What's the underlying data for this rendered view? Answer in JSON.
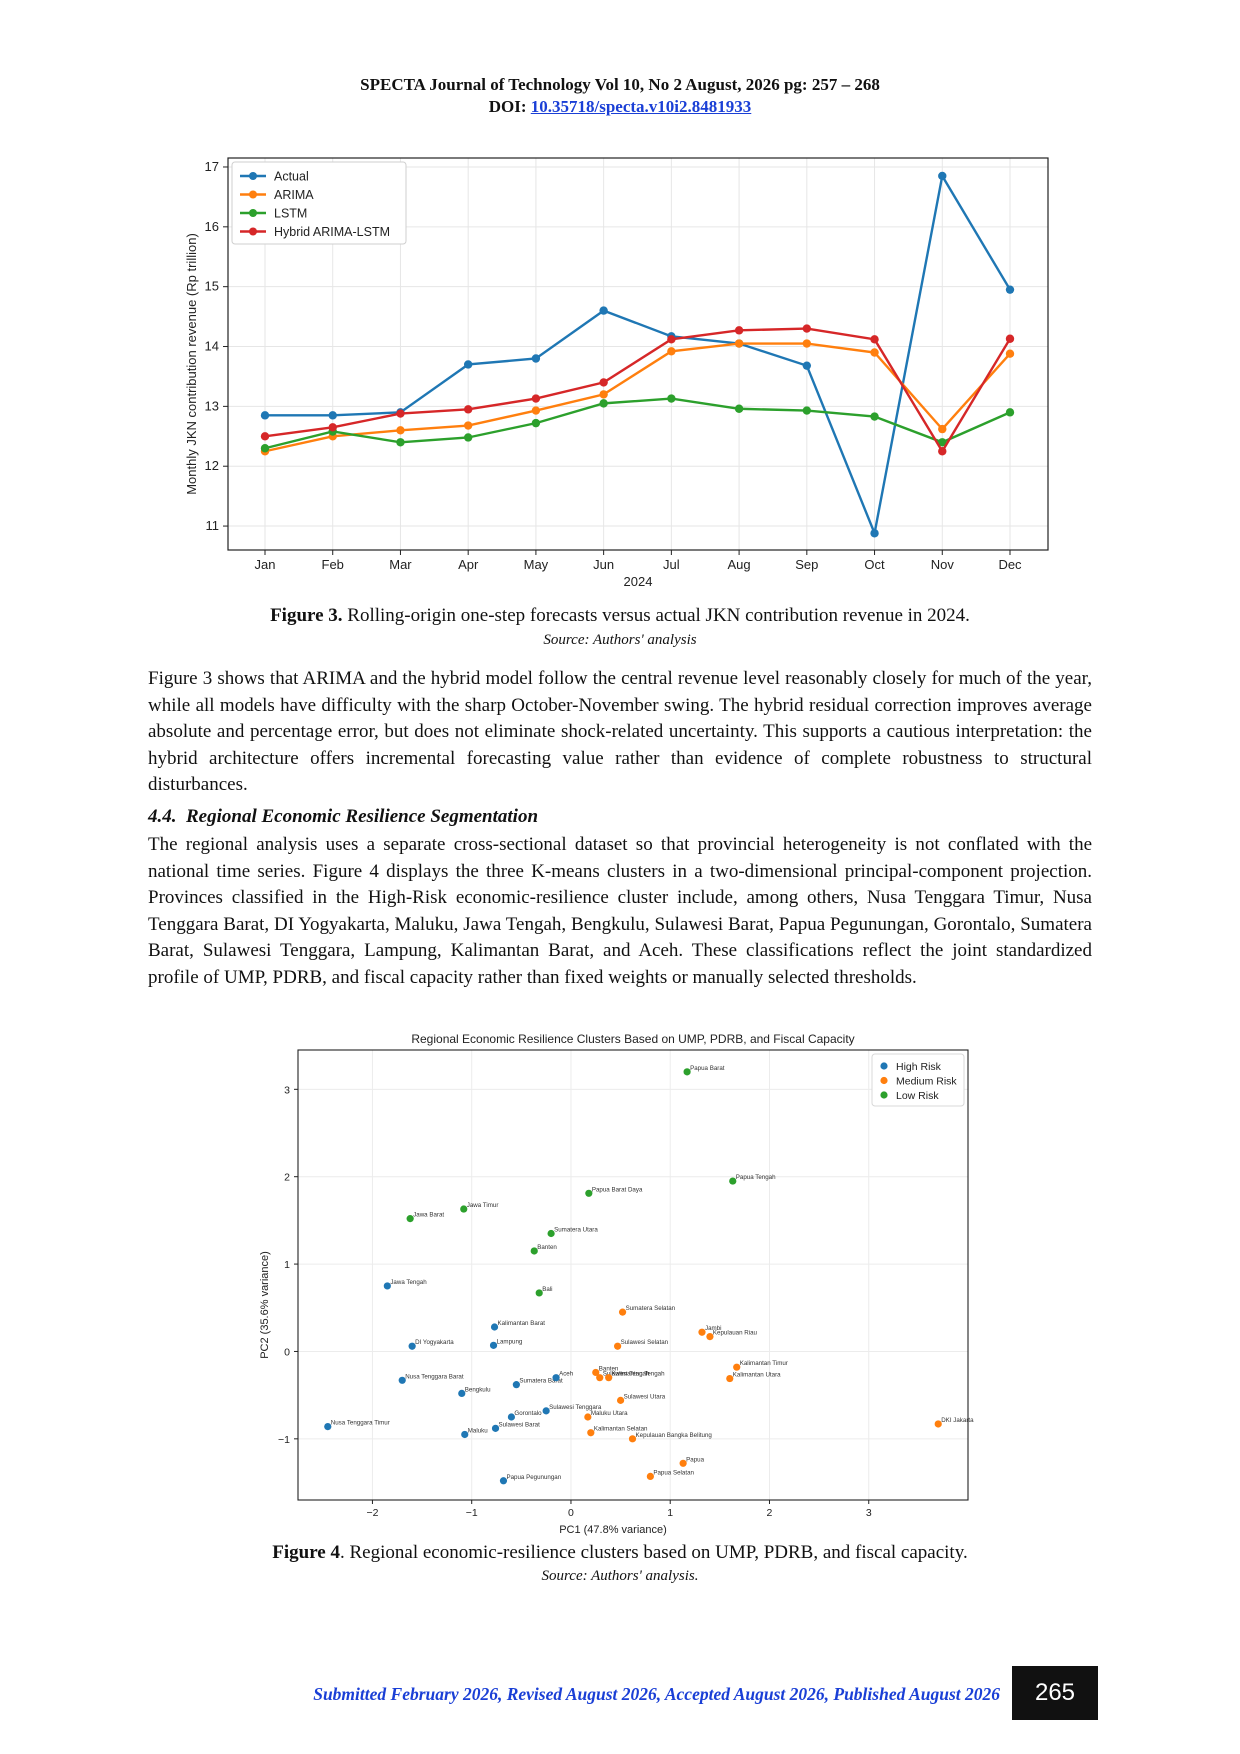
{
  "header": {
    "journal_line": "SPECTA Journal of Technology Vol 10, No 2 August, 2026 pg: 257 – 268",
    "doi_label": "DOI: ",
    "doi_link": "10.35718/specta.v10i2.8481933"
  },
  "figure3": {
    "caption_bold": "Figure 3.",
    "caption_text": " Rolling-origin one-step forecasts versus actual JKN contribution revenue in 2024.",
    "source": "Source: Authors' analysis",
    "chart_data": {
      "type": "line",
      "x": [
        "Jan",
        "Feb",
        "Mar",
        "Apr",
        "May",
        "Jun",
        "Jul",
        "Aug",
        "Sep",
        "Oct",
        "Nov",
        "Dec"
      ],
      "xlabel": "2024",
      "ylabel": "Monthly JKN contribution revenue (Rp trillion)",
      "ylim": [
        10.6,
        17.15
      ],
      "yticks": [
        11,
        12,
        13,
        14,
        15,
        16,
        17
      ],
      "grid": true,
      "legend_position": "top-left",
      "series": [
        {
          "name": "Actual",
          "color": "#1f77b4",
          "values": [
            12.85,
            12.85,
            12.9,
            13.7,
            13.8,
            14.6,
            14.17,
            14.05,
            13.68,
            10.88,
            16.85,
            14.95
          ]
        },
        {
          "name": "ARIMA",
          "color": "#ff7f0e",
          "values": [
            12.25,
            12.5,
            12.6,
            12.68,
            12.93,
            13.2,
            13.92,
            14.05,
            14.05,
            13.9,
            12.62,
            13.88
          ]
        },
        {
          "name": "LSTM",
          "color": "#2ca02c",
          "values": [
            12.3,
            12.58,
            12.4,
            12.48,
            12.72,
            13.05,
            13.13,
            12.96,
            12.93,
            12.83,
            12.4,
            12.9
          ]
        },
        {
          "name": "Hybrid ARIMA-LSTM",
          "color": "#d62728",
          "values": [
            12.5,
            12.65,
            12.88,
            12.95,
            13.13,
            13.4,
            14.12,
            14.27,
            14.3,
            14.12,
            12.25,
            14.13
          ]
        }
      ]
    }
  },
  "para1": "Figure 3 shows that ARIMA and the hybrid model follow the central revenue level reasonably closely for much of the year, while all models have difficulty with the sharp October-November swing. The hybrid residual correction improves average absolute and percentage error, but does not eliminate shock-related uncertainty. This supports a cautious interpretation: the hybrid architecture offers incremental forecasting value rather than evidence of complete robustness to structural disturbances.",
  "section_4_4": {
    "number": "4.4.",
    "title": "Regional Economic Resilience Segmentation"
  },
  "para2": "The regional analysis uses a separate cross-sectional dataset so that provincial heterogeneity is not conflated with the national time series. Figure 4 displays the three K-means clusters in a two-dimensional principal-component projection. Provinces classified in the High-Risk economic-resilience cluster include, among others, Nusa Tenggara Timur, Nusa Tenggara Barat, DI Yogyakarta, Maluku, Jawa Tengah, Bengkulu, Sulawesi Barat, Papua Pegunungan, Gorontalo, Sumatera Barat, Sulawesi Tenggara, Lampung, Kalimantan Barat, and Aceh. These classifications reflect the joint standardized profile of UMP, PDRB, and fiscal capacity rather than fixed weights or manually selected thresholds.",
  "figure4": {
    "caption_bold": "Figure 4",
    "caption_text": ". Regional economic-resilience clusters based on UMP, PDRB, and fiscal capacity.",
    "source": "Source: Authors' analysis.",
    "chart_data": {
      "type": "scatter",
      "title": "Regional Economic Resilience Clusters Based on UMP, PDRB, and Fiscal Capacity",
      "xlabel": "PC1 (47.8% variance)",
      "ylabel": "PC2 (35.6% variance)",
      "xlim": [
        -2.75,
        4.0
      ],
      "ylim": [
        -1.7,
        3.45
      ],
      "xticks": [
        -2,
        -1,
        0,
        1,
        2,
        3
      ],
      "yticks": [
        -1,
        0,
        1,
        2,
        3
      ],
      "grid": true,
      "legend_position": "top-right",
      "series": [
        {
          "name": "High Risk",
          "color": "#1f77b4",
          "points": [
            {
              "x": -2.45,
              "y": -0.86,
              "label": "Nusa Tenggara Timur"
            },
            {
              "x": -1.85,
              "y": 0.75,
              "label": "Jawa Tengah"
            },
            {
              "x": -1.6,
              "y": 0.06,
              "label": "DI Yogyakarta"
            },
            {
              "x": -1.7,
              "y": -0.33,
              "label": "Nusa Tenggara Barat"
            },
            {
              "x": -1.1,
              "y": -0.48,
              "label": "Bengkulu"
            },
            {
              "x": -1.07,
              "y": -0.95,
              "label": "Maluku"
            },
            {
              "x": -0.77,
              "y": 0.28,
              "label": "Kalimantan Barat"
            },
            {
              "x": -0.78,
              "y": 0.07,
              "label": "Lampung"
            },
            {
              "x": -0.55,
              "y": -0.38,
              "label": "Sumatera Barat"
            },
            {
              "x": -0.15,
              "y": -0.3,
              "label": "Aceh"
            },
            {
              "x": -0.25,
              "y": -0.68,
              "label": "Sulawesi Tenggara"
            },
            {
              "x": -0.6,
              "y": -0.75,
              "label": "Gorontalo"
            },
            {
              "x": -0.76,
              "y": -0.88,
              "label": "Sulawesi Barat"
            },
            {
              "x": -0.68,
              "y": -1.48,
              "label": "Papua Pegunungan"
            }
          ]
        },
        {
          "name": "Medium Risk",
          "color": "#ff7f0e",
          "points": [
            {
              "x": 0.52,
              "y": 0.45,
              "label": "Sumatera Selatan"
            },
            {
              "x": 0.47,
              "y": 0.06,
              "label": "Sulawesi Selatan"
            },
            {
              "x": 1.32,
              "y": 0.22,
              "label": "Jambi"
            },
            {
              "x": 1.4,
              "y": 0.17,
              "label": "Kepulauan Riau"
            },
            {
              "x": 0.25,
              "y": -0.24,
              "label": "Banten"
            },
            {
              "x": 0.29,
              "y": -0.3,
              "label": "Sulawesi Tengah"
            },
            {
              "x": 0.38,
              "y": -0.3,
              "label": "Kalimantan Tengah"
            },
            {
              "x": 1.67,
              "y": -0.18,
              "label": "Kalimantan Timur"
            },
            {
              "x": 1.6,
              "y": -0.31,
              "label": "Kalimantan Utara"
            },
            {
              "x": 0.5,
              "y": -0.56,
              "label": "Sulawesi Utara"
            },
            {
              "x": 0.17,
              "y": -0.75,
              "label": "Maluku Utara"
            },
            {
              "x": 0.2,
              "y": -0.93,
              "label": "Kalimantan Selatan"
            },
            {
              "x": 0.62,
              "y": -1.0,
              "label": "Kepulauan Bangka Belitung"
            },
            {
              "x": 3.7,
              "y": -0.83,
              "label": "DKI Jakarta"
            },
            {
              "x": 1.13,
              "y": -1.28,
              "label": "Papua"
            },
            {
              "x": 0.8,
              "y": -1.43,
              "label": "Papua Selatan"
            }
          ]
        },
        {
          "name": "Low Risk",
          "color": "#2ca02c",
          "points": [
            {
              "x": 1.17,
              "y": 3.2,
              "label": "Papua Barat"
            },
            {
              "x": 1.63,
              "y": 1.95,
              "label": "Papua Tengah"
            },
            {
              "x": 0.18,
              "y": 1.81,
              "label": "Papua Barat Daya"
            },
            {
              "x": -1.62,
              "y": 1.52,
              "label": "Jawa Barat"
            },
            {
              "x": -1.08,
              "y": 1.63,
              "label": "Jawa Timur"
            },
            {
              "x": -0.2,
              "y": 1.35,
              "label": "Sumatera Utara"
            },
            {
              "x": -0.37,
              "y": 1.15,
              "label": "Banten"
            },
            {
              "x": -0.32,
              "y": 0.67,
              "label": "Bali"
            }
          ]
        }
      ]
    }
  },
  "footer": {
    "text": "Submitted February 2026, Revised August 2026, Accepted August 2026, Published August 2026",
    "page_number": "265"
  }
}
